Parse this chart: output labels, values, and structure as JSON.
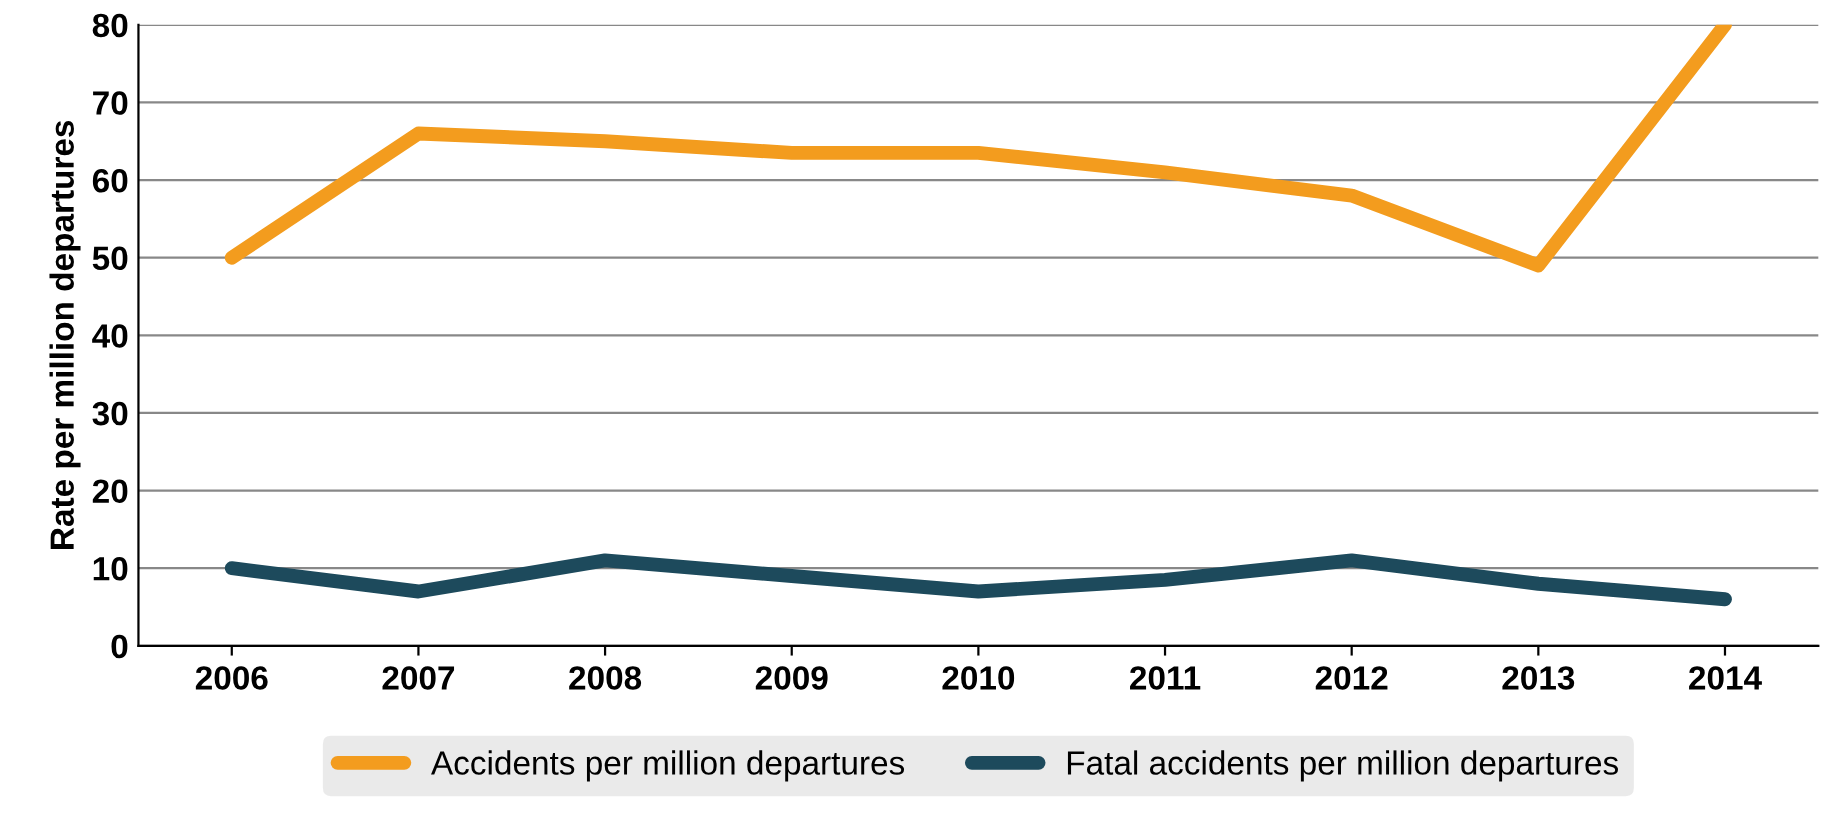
{
  "chart_data": {
    "type": "line",
    "ylabel": "Rate per million departures",
    "categories": [
      "2006",
      "2007",
      "2008",
      "2009",
      "2010",
      "2011",
      "2012",
      "2013",
      "2014"
    ],
    "series": [
      {
        "name": "Accidents per million departures",
        "color": "#f39c1e",
        "values": [
          50,
          66,
          65,
          63.5,
          63.5,
          61,
          58,
          49,
          80
        ]
      },
      {
        "name": "Fatal accidents per million departures",
        "color": "#1d4a5c",
        "values": [
          10,
          7,
          11,
          9,
          7,
          8.5,
          11,
          8,
          6
        ]
      }
    ],
    "ylim": [
      0,
      80
    ],
    "yticks": [
      0,
      10,
      20,
      30,
      40,
      50,
      60,
      70,
      80
    ],
    "grid": "y",
    "legend": "bottom",
    "marker": "none",
    "line_style": "solid"
  }
}
